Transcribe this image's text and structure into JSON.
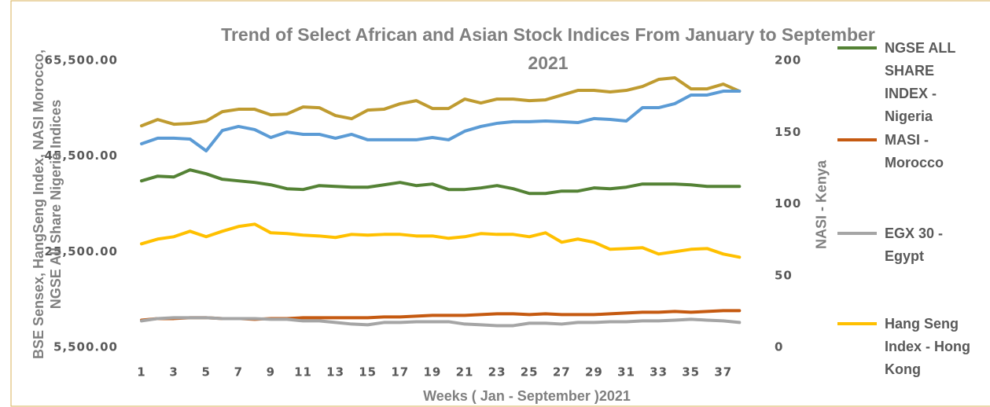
{
  "chart_data": {
    "type": "line",
    "title": "Trend of Select  African and Asian Stock Indices From January to September 2021",
    "x_label": "Weeks ( Jan - September )2021",
    "y_label": "BSE Sensex, HangSeng Index, NASI Morocco, NGSE All Share Nigeria Indices",
    "y2_label": "NASI - Kenya",
    "categories": [
      1,
      null,
      3,
      null,
      5,
      null,
      7,
      null,
      9,
      null,
      11,
      null,
      13,
      null,
      15,
      null,
      17,
      null,
      19,
      null,
      21,
      null,
      23,
      null,
      25,
      null,
      27,
      null,
      29,
      null,
      31,
      null,
      33,
      null,
      35,
      null,
      37,
      null
    ],
    "ylim": [
      5500,
      65500
    ],
    "yticks": [
      {
        "value": 5500,
        "label": "5,500.00"
      },
      {
        "value": 25500,
        "label": "25,500.00"
      },
      {
        "value": 45500,
        "label": "45,500.00"
      },
      {
        "value": 65500,
        "label": "65,500.00"
      }
    ],
    "y2lim": [
      0,
      200
    ],
    "y2ticks": [
      0,
      50,
      100,
      150,
      200
    ],
    "grid": false,
    "legend": "right",
    "series": [
      {
        "name": "NGSE ALL SHARE INDEX - Nigeria",
        "color": "#548235",
        "values": [
          40320,
          41300,
          41140,
          42620,
          41800,
          40650,
          40320,
          39990,
          39490,
          38670,
          38510,
          39330,
          39160,
          39000,
          39000,
          39490,
          39990,
          39330,
          39660,
          38510,
          38510,
          38840,
          39330,
          38670,
          37680,
          37680,
          38180,
          38180,
          38840,
          38670,
          39000,
          39660,
          39660,
          39660,
          39490,
          39160,
          39160,
          39160
        ]
      },
      {
        "name": "MASI - Morocco",
        "color": "#c55a11",
        "values": [
          11180,
          11510,
          11510,
          11680,
          11680,
          11510,
          11510,
          11350,
          11510,
          11510,
          11680,
          11680,
          11680,
          11680,
          11680,
          11840,
          11840,
          12010,
          12170,
          12170,
          12170,
          12340,
          12500,
          12500,
          12340,
          12500,
          12340,
          12340,
          12340,
          12500,
          12670,
          12830,
          12830,
          13000,
          12830,
          13000,
          13160,
          13160
        ]
      },
      {
        "name": "EGX 30 - Egypt",
        "color": "#a5a5a5",
        "values": [
          11020,
          11510,
          11680,
          11680,
          11680,
          11510,
          11510,
          11510,
          11350,
          11350,
          11020,
          11020,
          10690,
          10360,
          10200,
          10690,
          10690,
          10850,
          10850,
          10850,
          10360,
          10200,
          10030,
          10030,
          10530,
          10530,
          10360,
          10690,
          10690,
          10850,
          10850,
          11020,
          11020,
          11180,
          11350,
          11180,
          11020,
          10690
        ]
      },
      {
        "name": "Hang Seng Index - Hong Kong",
        "color": "#ffc000",
        "values": [
          27150,
          28140,
          28630,
          29780,
          28630,
          29780,
          30770,
          31260,
          29450,
          29290,
          28960,
          28790,
          28470,
          29120,
          28960,
          29120,
          29120,
          28790,
          28790,
          28300,
          28630,
          29290,
          29120,
          29120,
          28630,
          29450,
          27480,
          28140,
          27480,
          26000,
          26160,
          26330,
          25010,
          25500,
          26000,
          26160,
          25010,
          24350
        ]
      },
      {
        "color": "#bf9b30",
        "values": [
          51840,
          53150,
          52170,
          52330,
          52830,
          54800,
          55300,
          55300,
          54140,
          54310,
          55790,
          55620,
          53980,
          53320,
          55130,
          55300,
          56450,
          57100,
          55460,
          55460,
          57430,
          56610,
          57430,
          57430,
          57100,
          57270,
          58260,
          59250,
          59250,
          58920,
          59250,
          60070,
          61550,
          61880,
          59570,
          59570,
          60560,
          59080
        ]
      },
      {
        "color": "#5b9bd5",
        "axis": "y2",
        "values": [
          141.9,
          145.8,
          145.8,
          145.2,
          137.0,
          151.2,
          154.0,
          151.8,
          146.3,
          150.1,
          148.5,
          148.5,
          145.8,
          148.5,
          144.7,
          144.7,
          144.7,
          144.7,
          146.3,
          144.7,
          150.7,
          154.0,
          156.2,
          157.3,
          157.3,
          157.8,
          157.3,
          156.7,
          159.5,
          158.9,
          157.8,
          167.1,
          167.1,
          169.9,
          175.9,
          175.9,
          178.6,
          178.6
        ]
      }
    ]
  }
}
